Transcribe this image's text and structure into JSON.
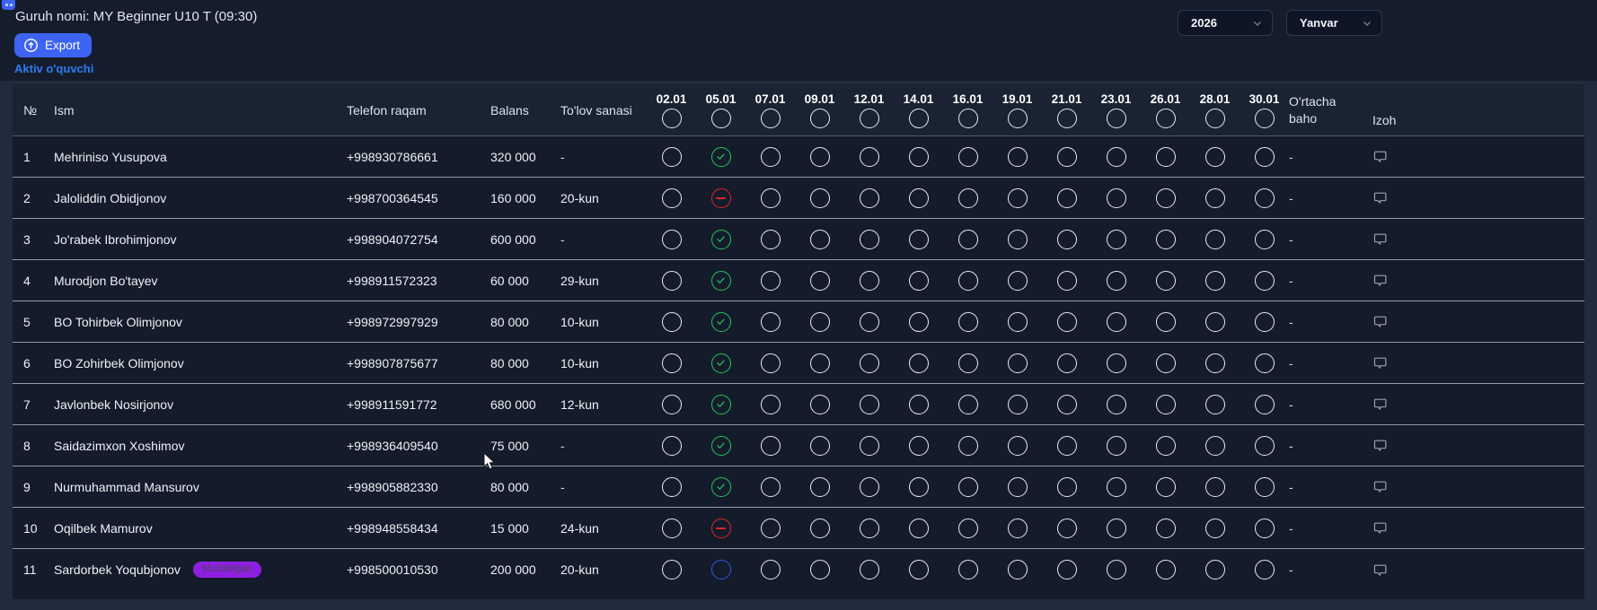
{
  "topbar": {
    "group_label": "Guruh nomi: MY Beginner U10 T (09:30)",
    "export_label": "Export",
    "active_students_link": "Aktiv o'quvchi",
    "year_value": "2026",
    "month_value": "Yanvar"
  },
  "table": {
    "columns": {
      "num": "№",
      "name": "Ism",
      "phone": "Telefon raqam",
      "balance": "Balans",
      "payment_date": "To'lov sanasi",
      "average_line1": "O'rtacha",
      "average_line2": "baho",
      "note": "Izoh"
    },
    "dates": [
      "02.01",
      "05.01",
      "07.01",
      "09.01",
      "12.01",
      "14.01",
      "16.01",
      "19.01",
      "21.01",
      "23.01",
      "26.01",
      "28.01",
      "30.01"
    ],
    "attendance_legend": {
      "none": "unmarked",
      "present": "green check",
      "absent": "red minus",
      "frozen": "blue empty"
    },
    "rows": [
      {
        "num": "1",
        "name": "Mehriniso Yusupova",
        "badge": "",
        "phone": "+998930786661",
        "balance": "320 000",
        "payment_date": "-",
        "average": "-",
        "attendance": [
          "none",
          "present",
          "none",
          "none",
          "none",
          "none",
          "none",
          "none",
          "none",
          "none",
          "none",
          "none",
          "none"
        ]
      },
      {
        "num": "2",
        "name": "Jaloliddin Obidjonov",
        "badge": "",
        "phone": "+998700364545",
        "balance": "160 000",
        "payment_date": "20-kun",
        "average": "-",
        "attendance": [
          "none",
          "absent",
          "none",
          "none",
          "none",
          "none",
          "none",
          "none",
          "none",
          "none",
          "none",
          "none",
          "none"
        ]
      },
      {
        "num": "3",
        "name": "Jo'rabek Ibrohimjonov",
        "badge": "",
        "phone": "+998904072754",
        "balance": "600 000",
        "payment_date": "-",
        "average": "-",
        "attendance": [
          "none",
          "present",
          "none",
          "none",
          "none",
          "none",
          "none",
          "none",
          "none",
          "none",
          "none",
          "none",
          "none"
        ]
      },
      {
        "num": "4",
        "name": "Murodjon Bo'tayev",
        "badge": "",
        "phone": "+998911572323",
        "balance": "60 000",
        "payment_date": "29-kun",
        "average": "-",
        "attendance": [
          "none",
          "present",
          "none",
          "none",
          "none",
          "none",
          "none",
          "none",
          "none",
          "none",
          "none",
          "none",
          "none"
        ]
      },
      {
        "num": "5",
        "name": "BO Tohirbek Olimjonov",
        "badge": "",
        "phone": "+998972997929",
        "balance": "80 000",
        "payment_date": "10-kun",
        "average": "-",
        "attendance": [
          "none",
          "present",
          "none",
          "none",
          "none",
          "none",
          "none",
          "none",
          "none",
          "none",
          "none",
          "none",
          "none"
        ]
      },
      {
        "num": "6",
        "name": "BO Zohirbek Olimjonov",
        "badge": "",
        "phone": "+998907875677",
        "balance": "80 000",
        "payment_date": "10-kun",
        "average": "-",
        "attendance": [
          "none",
          "present",
          "none",
          "none",
          "none",
          "none",
          "none",
          "none",
          "none",
          "none",
          "none",
          "none",
          "none"
        ]
      },
      {
        "num": "7",
        "name": "Javlonbek Nosirjonov",
        "badge": "",
        "phone": "+998911591772",
        "balance": "680 000",
        "payment_date": "12-kun",
        "average": "-",
        "attendance": [
          "none",
          "present",
          "none",
          "none",
          "none",
          "none",
          "none",
          "none",
          "none",
          "none",
          "none",
          "none",
          "none"
        ]
      },
      {
        "num": "8",
        "name": "Saidazimxon Xoshimov",
        "badge": "",
        "phone": "+998936409540",
        "balance": "75 000",
        "payment_date": "-",
        "average": "-",
        "attendance": [
          "none",
          "present",
          "none",
          "none",
          "none",
          "none",
          "none",
          "none",
          "none",
          "none",
          "none",
          "none",
          "none"
        ]
      },
      {
        "num": "9",
        "name": "Nurmuhammad Mansurov",
        "badge": "",
        "phone": "+998905882330",
        "balance": "80 000",
        "payment_date": "-",
        "average": "-",
        "attendance": [
          "none",
          "present",
          "none",
          "none",
          "none",
          "none",
          "none",
          "none",
          "none",
          "none",
          "none",
          "none",
          "none"
        ]
      },
      {
        "num": "10",
        "name": "Oqilbek Mamurov",
        "badge": "",
        "phone": "+998948558434",
        "balance": "15 000",
        "payment_date": "24-kun",
        "average": "-",
        "attendance": [
          "none",
          "absent",
          "none",
          "none",
          "none",
          "none",
          "none",
          "none",
          "none",
          "none",
          "none",
          "none",
          "none"
        ]
      },
      {
        "num": "11",
        "name": "Sardorbek Yoqubjonov",
        "badge": "Muzlatilgan",
        "phone": "+998500010530",
        "balance": "200 000",
        "payment_date": "20-kun",
        "average": "-",
        "attendance": [
          "none",
          "frozen",
          "none",
          "none",
          "none",
          "none",
          "none",
          "none",
          "none",
          "none",
          "none",
          "none",
          "none"
        ]
      }
    ]
  },
  "colors": {
    "accent_blue": "#3d63f2",
    "link_blue": "#2c7bf5",
    "badge_purple": "#8e1fe0",
    "present_green": "#22c55e",
    "absent_red": "#dc2626",
    "frozen_blue": "#2f54eb"
  }
}
